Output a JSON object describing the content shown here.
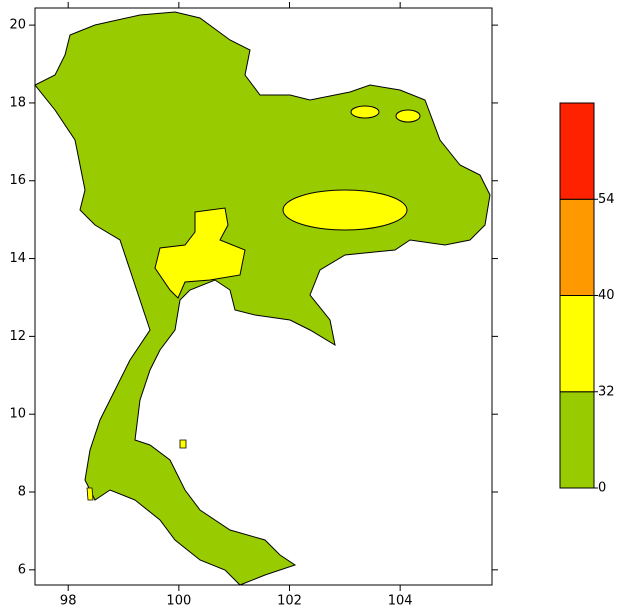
{
  "map": {
    "xlim": [
      97.4,
      105.66
    ],
    "ylim": [
      5.61,
      20.44
    ],
    "xticks": [
      98,
      100,
      102,
      104
    ],
    "yticks": [
      6,
      8,
      10,
      12,
      14,
      16,
      18,
      20
    ],
    "land_color": "#99cc00",
    "colorbar": {
      "levels": [
        0,
        32,
        40,
        54
      ],
      "colors": [
        "#99cc00",
        "#ffff00",
        "#ff9900",
        "#ff2200"
      ]
    }
  }
}
